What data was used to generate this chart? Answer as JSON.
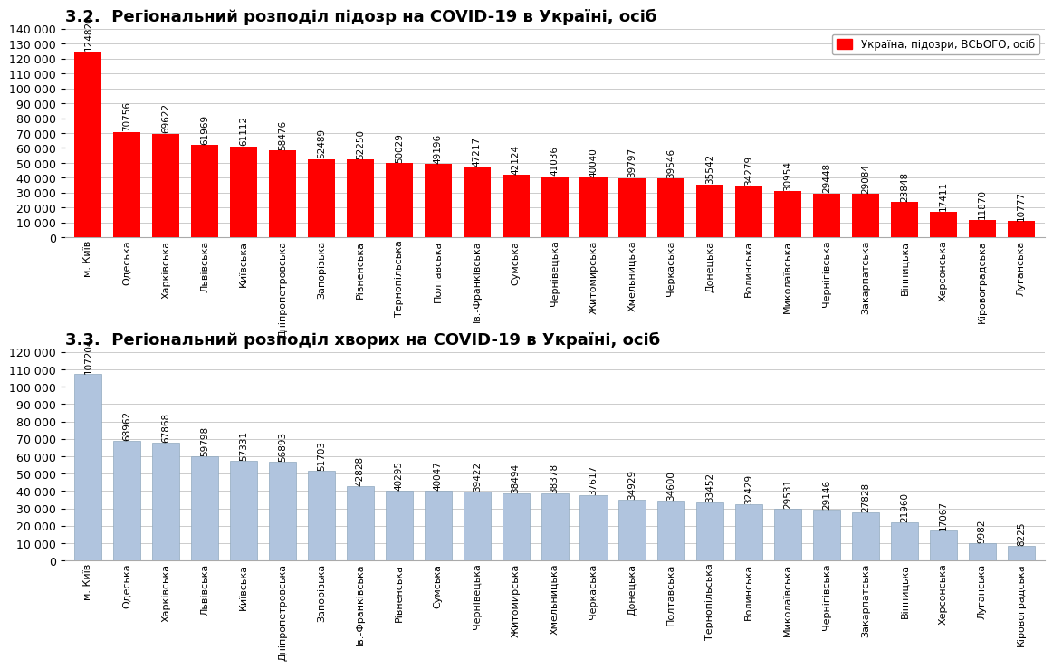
{
  "chart1_title_bold": "3.2.  Регіональний розподіл підозр на COVID-19 в Україні,",
  "chart1_title_normal": " осіб",
  "chart1_categories": [
    "м. Київ",
    "Одеська",
    "Харківська",
    "Львівська",
    "Київська",
    "Дніпропетровська",
    "Запорізька",
    "Рівненська",
    "Тернопільська",
    "Полтавська",
    "Ів.-Франківська",
    "Сумська",
    "Чернівецька",
    "Житомирська",
    "Хмельницька",
    "Черкаська",
    "Донецька",
    "Волинська",
    "Миколаївська",
    "Чернігівська",
    "Закарпатська",
    "Вінницька",
    "Херсонська",
    "Кіровоградська",
    "Луганська"
  ],
  "chart1_values": [
    124820,
    70756,
    69622,
    61969,
    61112,
    58476,
    52489,
    52250,
    50029,
    49196,
    47217,
    42124,
    41036,
    40040,
    39797,
    39546,
    35542,
    34279,
    30954,
    29448,
    29084,
    23848,
    17411,
    11870,
    10777
  ],
  "chart1_bar_color": "#FF0000",
  "chart1_ylim": [
    0,
    140000
  ],
  "chart1_yticks": [
    0,
    10000,
    20000,
    30000,
    40000,
    50000,
    60000,
    70000,
    80000,
    90000,
    100000,
    110000,
    120000,
    130000,
    140000
  ],
  "chart1_legend_label": "Україна, підозри, ВСЬОГО, осіб",
  "chart1_legend_color": "#FF0000",
  "chart2_title_bold": "3.3.  Регіональний розподіл хворих на COVID-19 в Україні,",
  "chart2_title_normal": " осіб",
  "chart2_categories": [
    "м. Київ",
    "Одеська",
    "Харківська",
    "Львівська",
    "Київська",
    "Дніпропетровська",
    "Запорізька",
    "Ів.-Франківська",
    "Рівненська",
    "Сумська",
    "Чернівецька",
    "Житомирська",
    "Хмельницька",
    "Черкаська",
    "Донецька",
    "Полтавська",
    "Тернопільська",
    "Волинська",
    "Миколаївська",
    "Чернігівська",
    "Закарпатська",
    "Вінницька",
    "Херсонська",
    "Луганська",
    "Кіровоградська"
  ],
  "chart2_values": [
    107204,
    68962,
    67868,
    59798,
    57331,
    56893,
    51703,
    42828,
    40295,
    40047,
    39422,
    38494,
    38378,
    37617,
    34929,
    34600,
    33452,
    32429,
    29531,
    29146,
    27828,
    21960,
    17067,
    9982,
    8225
  ],
  "chart2_bar_color": "#B0C4DE",
  "chart2_ylim": [
    0,
    120000
  ],
  "chart2_yticks": [
    0,
    10000,
    20000,
    30000,
    40000,
    50000,
    60000,
    70000,
    80000,
    90000,
    100000,
    110000,
    120000
  ],
  "background_color": "#FFFFFF",
  "grid_color": "#CCCCCC",
  "value_fontsize": 7.5,
  "label_fontsize": 8,
  "title_fontsize": 13,
  "ytick_fontsize": 9
}
